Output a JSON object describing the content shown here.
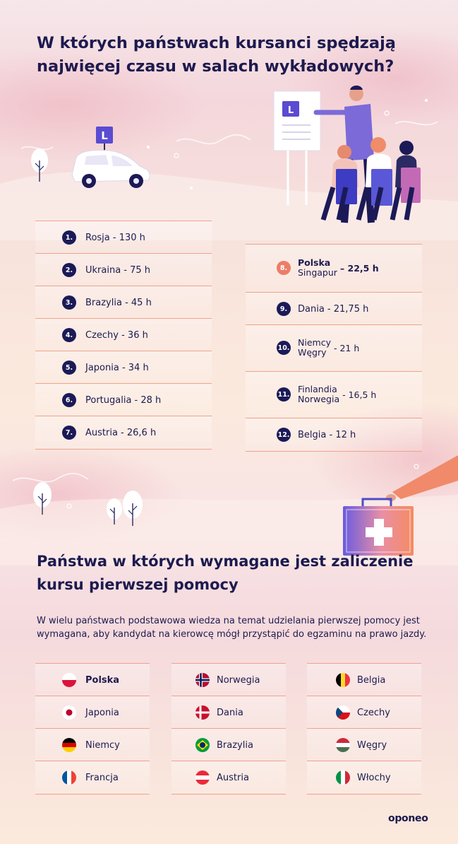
{
  "title1": "W których państwach kursanci spędzają najwięcej czasu w salach wykładowych?",
  "ranking_left": [
    {
      "num": "1.",
      "label": "Rosja - 130 h"
    },
    {
      "num": "2.",
      "label": "Ukraina - 75 h"
    },
    {
      "num": "3.",
      "label": "Brazylia - 45 h"
    },
    {
      "num": "4.",
      "label": "Czechy - 36 h"
    },
    {
      "num": "5.",
      "label": "Japonia - 34 h"
    },
    {
      "num": "6.",
      "label": "Portugalia - 28 h"
    },
    {
      "num": "7.",
      "label": "Austria - 26,6 h"
    }
  ],
  "ranking_right": [
    {
      "num": "8.",
      "line1": "Polska",
      "line2": "Singapur",
      "value": "– 22,5 h",
      "highlight": true
    },
    {
      "num": "9.",
      "label": "Dania - 21,75 h"
    },
    {
      "num": "10.",
      "line1": "Niemcy",
      "line2": "Węgry",
      "value": "- 21 h"
    },
    {
      "num": "11.",
      "line1": "Finlandia",
      "line2": "Norwegia",
      "value": "- 16,5 h"
    },
    {
      "num": "12.",
      "label": "Belgia - 12 h"
    }
  ],
  "title2": "Państwa w których wymagane jest zaliczenie kursu pierwszej pomocy",
  "description": "W wielu państwach podstawowa wiedza na temat udzielania pierwszej pomocy jest wymagana, aby kandydat na kierowcę mógł przystąpić do egzaminu na prawo jazdy.",
  "countries": [
    [
      {
        "name": "Polska",
        "flag": "pl-flag-icon",
        "bold": true
      },
      {
        "name": "Japonia",
        "flag": "jp-flag-icon"
      },
      {
        "name": "Niemcy",
        "flag": "de-flag-icon"
      },
      {
        "name": "Francja",
        "flag": "fr-flag-icon"
      }
    ],
    [
      {
        "name": "Norwegia",
        "flag": "no-flag-icon"
      },
      {
        "name": "Dania",
        "flag": "dk-flag-icon"
      },
      {
        "name": "Brazylia",
        "flag": "br-flag-icon"
      },
      {
        "name": "Austria",
        "flag": "at-flag-icon"
      }
    ],
    [
      {
        "name": "Belgia",
        "flag": "be-flag-icon"
      },
      {
        "name": "Czechy",
        "flag": "cz-flag-icon"
      },
      {
        "name": "Węgry",
        "flag": "hu-flag-icon"
      },
      {
        "name": "Włochy",
        "flag": "it-flag-icon"
      }
    ]
  ],
  "illustration_labels": {
    "sign_letter": "L"
  },
  "brand": "oponeo",
  "colors": {
    "navy": "#1b1a57",
    "accent": "#ec7d68",
    "line": "#f0a38c"
  }
}
